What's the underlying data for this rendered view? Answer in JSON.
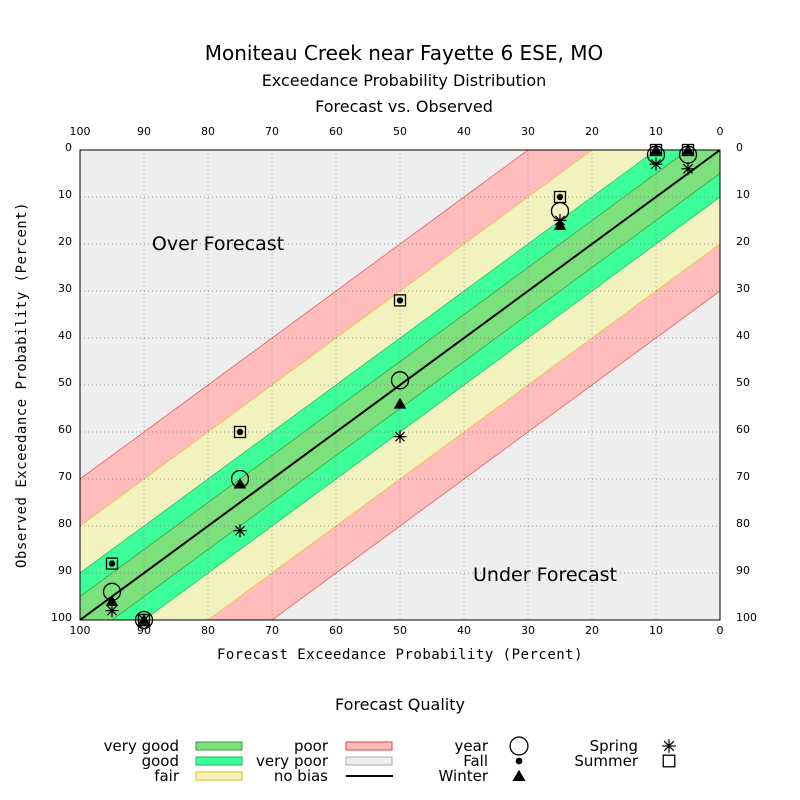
{
  "title": "Moniteau Creek near Fayette 6 ESE, MO",
  "subtitle1": "Exceedance Probability Distribution",
  "subtitle2": "Forecast vs. Observed",
  "region_over": "Over Forecast",
  "region_under": "Under Forecast",
  "legend_title": "Forecast Quality",
  "colors": {
    "very_good": "#7ce07c",
    "good": "#3dff9a",
    "fair": "#f2f2be",
    "poor": "#ffbcbc",
    "no_bias": "#eeeeee",
    "plot_bg": "#eeeeee"
  },
  "legend": {
    "quality": [
      {
        "label": "very good",
        "color": "#7ce07c",
        "border": "#3a9a3a"
      },
      {
        "label": "good",
        "color": "#3dff9a",
        "border": "#20b060"
      },
      {
        "label": "fair",
        "color": "#f2f2be",
        "border": "#e0c000"
      },
      {
        "label": "poor",
        "color": "#ffbcbc",
        "border": "#e04040"
      },
      {
        "label": "very poor",
        "color": "#eeeeee",
        "border": "#aaaaaa"
      },
      {
        "label": "no bias",
        "line": true
      }
    ],
    "series": [
      {
        "label": "year",
        "marker": "circle"
      },
      {
        "label": "Fall",
        "marker": "dot"
      },
      {
        "label": "Winter",
        "marker": "triangle"
      },
      {
        "label": "Spring",
        "marker": "asterisk"
      },
      {
        "label": "Summer",
        "marker": "square"
      }
    ]
  },
  "chart_data": {
    "type": "scatter",
    "xlabel": "Forecast Exceedance Probability (Percent)",
    "ylabel": "Observed Exceedance Probability (Percent)",
    "xlim": [
      100,
      0
    ],
    "ylim": [
      100,
      0
    ],
    "ticks": [
      "0",
      "10",
      "20",
      "30",
      "40",
      "50",
      "60",
      "70",
      "80",
      "90",
      "100"
    ],
    "grid": true,
    "bands": [
      {
        "name": "very good",
        "half_width": 5
      },
      {
        "name": "good",
        "half_width": 10
      },
      {
        "name": "fair",
        "half_width": 20
      },
      {
        "name": "poor",
        "half_width": 30
      }
    ],
    "series": [
      {
        "name": "year",
        "marker": "circle",
        "points": [
          [
            95,
            94
          ],
          [
            90,
            100
          ],
          [
            75,
            70
          ],
          [
            50,
            49
          ],
          [
            25,
            13
          ],
          [
            10,
            1
          ],
          [
            5,
            1
          ]
        ]
      },
      {
        "name": "Fall",
        "marker": "dot",
        "points": [
          [
            95,
            88
          ],
          [
            90,
            100
          ],
          [
            75,
            60
          ],
          [
            50,
            32
          ],
          [
            25,
            10
          ],
          [
            10,
            0
          ],
          [
            5,
            0
          ]
        ]
      },
      {
        "name": "Winter",
        "marker": "triangle",
        "points": [
          [
            95,
            96
          ],
          [
            90,
            100
          ],
          [
            75,
            71
          ],
          [
            50,
            54
          ],
          [
            25,
            16
          ],
          [
            10,
            0
          ],
          [
            5,
            0
          ]
        ]
      },
      {
        "name": "Spring",
        "marker": "asterisk",
        "points": [
          [
            95,
            98
          ],
          [
            90,
            100
          ],
          [
            75,
            81
          ],
          [
            50,
            61
          ],
          [
            25,
            15
          ],
          [
            10,
            3
          ],
          [
            5,
            4
          ]
        ]
      },
      {
        "name": "Summer",
        "marker": "square",
        "points": [
          [
            95,
            88
          ],
          [
            90,
            100
          ],
          [
            75,
            60
          ],
          [
            50,
            32
          ],
          [
            25,
            10
          ],
          [
            10,
            0
          ],
          [
            5,
            0
          ]
        ]
      }
    ]
  }
}
